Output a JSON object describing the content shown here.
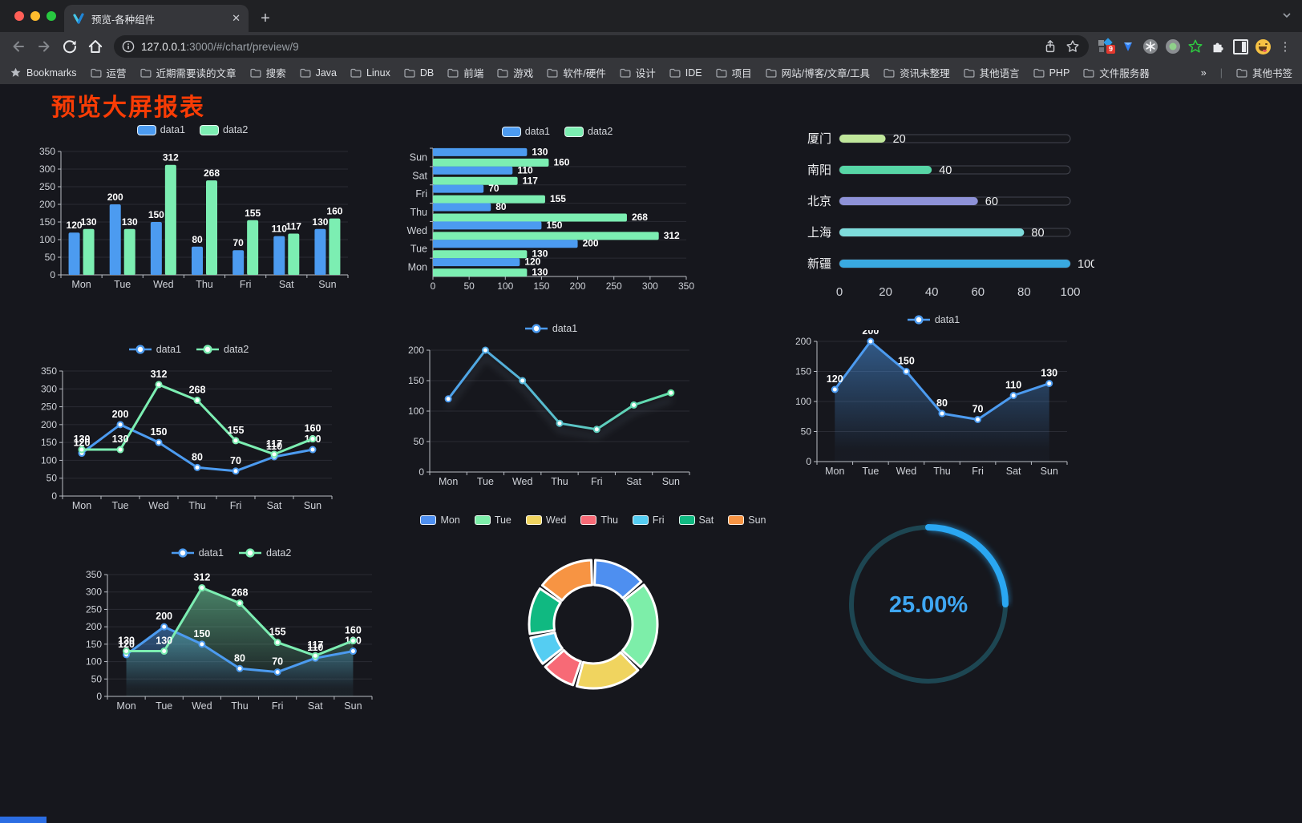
{
  "browser": {
    "tab_title": "预览-各种组件",
    "url_host": "127.0.0.1",
    "url_rest": ":3000/#/chart/preview/9",
    "bookmarks_label": "Bookmarks",
    "bookmark_folders": [
      "运营",
      "近期需要读的文章",
      "搜索",
      "Java",
      "Linux",
      "DB",
      "前端",
      "游戏",
      "软件/硬件",
      "设计",
      "IDE",
      "项目",
      "网站/博客/文章/工具",
      "资讯未整理",
      "其他语言",
      "PHP",
      "文件服务器"
    ],
    "bookmarks_overflow": "»",
    "other_bookmarks": "其他书签",
    "extension_badge": "9",
    "newtab_label": "+",
    "tab_close_label": "✕"
  },
  "page": {
    "title": "预览大屏报表",
    "title_color": "#f93c05",
    "background": "#16171d"
  },
  "chart_data": [
    {
      "id": "vbar",
      "type": "bar",
      "orientation": "vertical",
      "categories": [
        "Mon",
        "Tue",
        "Wed",
        "Thu",
        "Fri",
        "Sat",
        "Sun"
      ],
      "series": [
        {
          "name": "data1",
          "color": "#4c9bf0",
          "values": [
            120,
            200,
            150,
            80,
            70,
            110,
            130
          ]
        },
        {
          "name": "data2",
          "color": "#7ceeb2",
          "values": [
            130,
            130,
            312,
            268,
            155,
            117,
            160
          ]
        }
      ],
      "ylim": [
        0,
        350
      ],
      "yticks": [
        0,
        50,
        100,
        150,
        200,
        250,
        300,
        350
      ],
      "value_labels": true,
      "legend_position": "top",
      "grid": true
    },
    {
      "id": "hbar",
      "type": "bar",
      "orientation": "horizontal",
      "categories": [
        "Mon",
        "Tue",
        "Wed",
        "Thu",
        "Fri",
        "Sat",
        "Sun"
      ],
      "series": [
        {
          "name": "data1",
          "color": "#4c9bf0",
          "values": [
            120,
            200,
            150,
            80,
            70,
            110,
            130
          ]
        },
        {
          "name": "data2",
          "color": "#7ceeb2",
          "values": [
            130,
            130,
            312,
            268,
            155,
            117,
            160
          ]
        }
      ],
      "xlim": [
        0,
        350
      ],
      "xticks": [
        0,
        50,
        100,
        150,
        200,
        250,
        300,
        350
      ],
      "value_labels": true,
      "legend_position": "top",
      "grid": true
    },
    {
      "id": "progress",
      "type": "bar",
      "orientation": "progress-list",
      "max": 100,
      "xticks": [
        0,
        20,
        40,
        60,
        80,
        100
      ],
      "items": [
        {
          "label": "厦门",
          "value": 20,
          "color": "#c0e79b"
        },
        {
          "label": "南阳",
          "value": 40,
          "color": "#57d6a6"
        },
        {
          "label": "北京",
          "value": 60,
          "color": "#8e92d8"
        },
        {
          "label": "上海",
          "value": 80,
          "color": "#7edcdb"
        },
        {
          "label": "新疆",
          "value": 100,
          "color": "#39a9e0"
        }
      ]
    },
    {
      "id": "line2",
      "type": "line",
      "categories": [
        "Mon",
        "Tue",
        "Wed",
        "Thu",
        "Fri",
        "Sat",
        "Sun"
      ],
      "series": [
        {
          "name": "data1",
          "color": "#4c9bf0",
          "values": [
            120,
            200,
            150,
            80,
            70,
            110,
            130
          ]
        },
        {
          "name": "data2",
          "color": "#7ceeb2",
          "values": [
            130,
            130,
            312,
            268,
            155,
            117,
            160
          ]
        }
      ],
      "ylim": [
        0,
        350
      ],
      "yticks": [
        0,
        50,
        100,
        150,
        200,
        250,
        300,
        350
      ],
      "value_labels": true,
      "legend_position": "top",
      "grid": true
    },
    {
      "id": "line1-gradient",
      "type": "line",
      "categories": [
        "Mon",
        "Tue",
        "Wed",
        "Thu",
        "Fri",
        "Sat",
        "Sun"
      ],
      "series": [
        {
          "name": "data1",
          "color": "#4c9bf0",
          "gradient": [
            "#4c9bf0",
            "#66e6a4"
          ],
          "values": [
            120,
            200,
            150,
            80,
            70,
            110,
            130
          ]
        }
      ],
      "ylim": [
        0,
        200
      ],
      "yticks": [
        0,
        50,
        100,
        150,
        200
      ],
      "value_labels": false,
      "shadow": true,
      "legend_position": "top",
      "grid": true
    },
    {
      "id": "line1-area",
      "type": "line",
      "categories": [
        "Mon",
        "Tue",
        "Wed",
        "Thu",
        "Fri",
        "Sat",
        "Sun"
      ],
      "series": [
        {
          "name": "data1",
          "color": "#4c9bf0",
          "area": true,
          "values": [
            120,
            200,
            150,
            80,
            70,
            110,
            130
          ]
        }
      ],
      "ylim": [
        0,
        200
      ],
      "yticks": [
        0,
        50,
        100,
        150,
        200
      ],
      "value_labels": true,
      "legend_position": "top",
      "grid": true
    },
    {
      "id": "line2-area",
      "type": "line",
      "categories": [
        "Mon",
        "Tue",
        "Wed",
        "Thu",
        "Fri",
        "Sat",
        "Sun"
      ],
      "series": [
        {
          "name": "data1",
          "color": "#4c9bf0",
          "area": true,
          "values": [
            120,
            200,
            150,
            80,
            70,
            110,
            130
          ]
        },
        {
          "name": "data2",
          "color": "#7ceeb2",
          "area": true,
          "values": [
            130,
            130,
            312,
            268,
            155,
            117,
            160
          ]
        }
      ],
      "ylim": [
        0,
        350
      ],
      "yticks": [
        0,
        50,
        100,
        150,
        200,
        250,
        300,
        350
      ],
      "value_labels": true,
      "legend_position": "top",
      "grid": true
    },
    {
      "id": "donut",
      "type": "pie",
      "variant": "donut",
      "legend_position": "top",
      "items": [
        {
          "name": "Mon",
          "value": 120,
          "color": "#4e8ff0"
        },
        {
          "name": "Tue",
          "value": 200,
          "color": "#7deea9"
        },
        {
          "name": "Wed",
          "value": 150,
          "color": "#f0d45f"
        },
        {
          "name": "Thu",
          "value": 80,
          "color": "#f76a76"
        },
        {
          "name": "Fri",
          "value": 70,
          "color": "#55cdf2"
        },
        {
          "name": "Sat",
          "value": 110,
          "color": "#10b981"
        },
        {
          "name": "Sun",
          "value": 130,
          "color": "#f79443"
        }
      ]
    },
    {
      "id": "gauge",
      "type": "gauge",
      "value": 25,
      "label": "25.00%",
      "color": "#2aa7f2",
      "track_color": "#1d4652",
      "text_color": "#3fa7f3"
    }
  ]
}
